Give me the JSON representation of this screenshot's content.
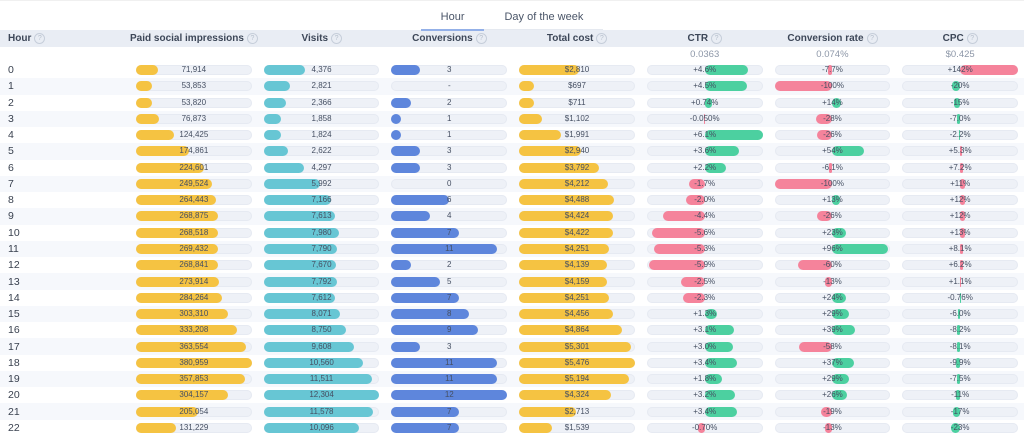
{
  "tabs": [
    {
      "label": "Hour",
      "active": true
    },
    {
      "label": "Day of the week",
      "active": false
    }
  ],
  "colors": {
    "impressions_bar": "#F5C342",
    "visits_bar": "#67C6D4",
    "conversions_bar": "#5E86DC",
    "cost_bar": "#F5C342",
    "positive_green": "#4CD0A0",
    "negative_pink": "#F5839B",
    "tab_underline": "#93B0E8"
  },
  "columns": [
    {
      "key": "hour",
      "label": "Hour",
      "type": "label",
      "benchmark": ""
    },
    {
      "key": "impressions",
      "label": "Paid social impressions",
      "type": "bar",
      "color": "impressions_bar",
      "benchmark": ""
    },
    {
      "key": "visits",
      "label": "Visits",
      "type": "bar",
      "color": "visits_bar",
      "benchmark": ""
    },
    {
      "key": "conversions",
      "label": "Conversions",
      "type": "bar",
      "color": "conversions_bar",
      "benchmark": ""
    },
    {
      "key": "cost",
      "label": "Total cost",
      "type": "bar",
      "color": "cost_bar",
      "benchmark": ""
    },
    {
      "key": "ctr",
      "label": "CTR",
      "type": "diverging",
      "invert": false,
      "benchmark": "0.0363"
    },
    {
      "key": "cvr",
      "label": "Conversion rate",
      "type": "diverging",
      "invert": false,
      "benchmark": "0.074%"
    },
    {
      "key": "cpc",
      "label": "CPC",
      "type": "diverging",
      "invert": true,
      "benchmark": "$0.425"
    }
  ],
  "rows": [
    {
      "hour": "0",
      "impressions": {
        "d": "71,914",
        "v": 71914
      },
      "visits": {
        "d": "4,376",
        "v": 4376
      },
      "conversions": {
        "d": "3",
        "v": 3
      },
      "cost": {
        "d": "$2,810",
        "v": 2810
      },
      "ctr": {
        "d": "+4.6%",
        "v": 4.6
      },
      "cvr": {
        "d": "-7.7%",
        "v": -7.7
      },
      "cpc": {
        "d": "+142%",
        "v": 142
      }
    },
    {
      "hour": "1",
      "impressions": {
        "d": "53,853",
        "v": 53853
      },
      "visits": {
        "d": "2,821",
        "v": 2821
      },
      "conversions": {
        "d": "-",
        "v": null
      },
      "cost": {
        "d": "$697",
        "v": 697
      },
      "ctr": {
        "d": "+4.5%",
        "v": 4.5
      },
      "cvr": {
        "d": "-100%",
        "v": -100
      },
      "cpc": {
        "d": "-20%",
        "v": -20
      }
    },
    {
      "hour": "2",
      "impressions": {
        "d": "53,820",
        "v": 53820
      },
      "visits": {
        "d": "2,366",
        "v": 2366
      },
      "conversions": {
        "d": "2",
        "v": 2
      },
      "cost": {
        "d": "$711",
        "v": 711
      },
      "ctr": {
        "d": "+0.74%",
        "v": 0.74
      },
      "cvr": {
        "d": "+14%",
        "v": 14
      },
      "cpc": {
        "d": "-15%",
        "v": -15
      }
    },
    {
      "hour": "3",
      "impressions": {
        "d": "76,873",
        "v": 76873
      },
      "visits": {
        "d": "1,858",
        "v": 1858
      },
      "conversions": {
        "d": "1",
        "v": 1
      },
      "cost": {
        "d": "$1,102",
        "v": 1102
      },
      "ctr": {
        "d": "-0.050%",
        "v": -0.05
      },
      "cvr": {
        "d": "-28%",
        "v": -28
      },
      "cpc": {
        "d": "-7.0%",
        "v": -7.0
      }
    },
    {
      "hour": "4",
      "impressions": {
        "d": "124,425",
        "v": 124425
      },
      "visits": {
        "d": "1,824",
        "v": 1824
      },
      "conversions": {
        "d": "1",
        "v": 1
      },
      "cost": {
        "d": "$1,991",
        "v": 1991
      },
      "ctr": {
        "d": "+6.1%",
        "v": 6.1
      },
      "cvr": {
        "d": "-26%",
        "v": -26
      },
      "cpc": {
        "d": "-2.2%",
        "v": -2.2
      }
    },
    {
      "hour": "5",
      "impressions": {
        "d": "174,861",
        "v": 174861
      },
      "visits": {
        "d": "2,622",
        "v": 2622
      },
      "conversions": {
        "d": "3",
        "v": 3
      },
      "cost": {
        "d": "$2,940",
        "v": 2940
      },
      "ctr": {
        "d": "+3.6%",
        "v": 3.6
      },
      "cvr": {
        "d": "+54%",
        "v": 54
      },
      "cpc": {
        "d": "+5.3%",
        "v": 5.3
      }
    },
    {
      "hour": "6",
      "impressions": {
        "d": "224,601",
        "v": 224601
      },
      "visits": {
        "d": "4,297",
        "v": 4297
      },
      "conversions": {
        "d": "3",
        "v": 3
      },
      "cost": {
        "d": "$3,792",
        "v": 3792
      },
      "ctr": {
        "d": "+2.2%",
        "v": 2.2
      },
      "cvr": {
        "d": "-6.1%",
        "v": -6.1
      },
      "cpc": {
        "d": "+7.2%",
        "v": 7.2
      }
    },
    {
      "hour": "7",
      "impressions": {
        "d": "249,524",
        "v": 249524
      },
      "visits": {
        "d": "5,992",
        "v": 5992
      },
      "conversions": {
        "d": "0",
        "v": 0
      },
      "cost": {
        "d": "$4,212",
        "v": 4212
      },
      "ctr": {
        "d": "-1.7%",
        "v": -1.7
      },
      "cvr": {
        "d": "-100%",
        "v": -100
      },
      "cpc": {
        "d": "+11%",
        "v": 11
      }
    },
    {
      "hour": "8",
      "impressions": {
        "d": "264,443",
        "v": 264443
      },
      "visits": {
        "d": "7,166",
        "v": 7166
      },
      "conversions": {
        "d": "6",
        "v": 6
      },
      "cost": {
        "d": "$4,488",
        "v": 4488
      },
      "ctr": {
        "d": "-2.0%",
        "v": -2.0
      },
      "cvr": {
        "d": "+13%",
        "v": 13
      },
      "cpc": {
        "d": "+12%",
        "v": 12
      }
    },
    {
      "hour": "9",
      "impressions": {
        "d": "268,875",
        "v": 268875
      },
      "visits": {
        "d": "7,613",
        "v": 7613
      },
      "conversions": {
        "d": "4",
        "v": 4
      },
      "cost": {
        "d": "$4,424",
        "v": 4424
      },
      "ctr": {
        "d": "-4.4%",
        "v": -4.4
      },
      "cvr": {
        "d": "-26%",
        "v": -26
      },
      "cpc": {
        "d": "+12%",
        "v": 12
      }
    },
    {
      "hour": "10",
      "impressions": {
        "d": "268,518",
        "v": 268518
      },
      "visits": {
        "d": "7,980",
        "v": 7980
      },
      "conversions": {
        "d": "7",
        "v": 7
      },
      "cost": {
        "d": "$4,422",
        "v": 4422
      },
      "ctr": {
        "d": "-5.6%",
        "v": -5.6
      },
      "cvr": {
        "d": "+23%",
        "v": 23
      },
      "cpc": {
        "d": "+13%",
        "v": 13
      }
    },
    {
      "hour": "11",
      "impressions": {
        "d": "269,432",
        "v": 269432
      },
      "visits": {
        "d": "7,790",
        "v": 7790
      },
      "conversions": {
        "d": "11",
        "v": 11
      },
      "cost": {
        "d": "$4,251",
        "v": 4251
      },
      "ctr": {
        "d": "-5.3%",
        "v": -5.3
      },
      "cvr": {
        "d": "+96%",
        "v": 96
      },
      "cpc": {
        "d": "+8.1%",
        "v": 8.1
      }
    },
    {
      "hour": "12",
      "impressions": {
        "d": "268,841",
        "v": 268841
      },
      "visits": {
        "d": "7,670",
        "v": 7670
      },
      "conversions": {
        "d": "2",
        "v": 2
      },
      "cost": {
        "d": "$4,139",
        "v": 4139
      },
      "ctr": {
        "d": "-5.9%",
        "v": -5.9
      },
      "cvr": {
        "d": "-60%",
        "v": -60
      },
      "cpc": {
        "d": "+6.2%",
        "v": 6.2
      }
    },
    {
      "hour": "13",
      "impressions": {
        "d": "273,914",
        "v": 273914
      },
      "visits": {
        "d": "7,792",
        "v": 7792
      },
      "conversions": {
        "d": "5",
        "v": 5
      },
      "cost": {
        "d": "$4,159",
        "v": 4159
      },
      "ctr": {
        "d": "-2.5%",
        "v": -2.5
      },
      "cvr": {
        "d": "-13%",
        "v": -13
      },
      "cpc": {
        "d": "+1.1%",
        "v": 1.1
      }
    },
    {
      "hour": "14",
      "impressions": {
        "d": "284,264",
        "v": 284264
      },
      "visits": {
        "d": "7,612",
        "v": 7612
      },
      "conversions": {
        "d": "7",
        "v": 7
      },
      "cost": {
        "d": "$4,251",
        "v": 4251
      },
      "ctr": {
        "d": "-2.3%",
        "v": -2.3
      },
      "cvr": {
        "d": "+24%",
        "v": 24
      },
      "cpc": {
        "d": "-0.76%",
        "v": -0.76
      }
    },
    {
      "hour": "15",
      "impressions": {
        "d": "303,310",
        "v": 303310
      },
      "visits": {
        "d": "8,071",
        "v": 8071
      },
      "conversions": {
        "d": "8",
        "v": 8
      },
      "cost": {
        "d": "$4,456",
        "v": 4456
      },
      "ctr": {
        "d": "+1.3%",
        "v": 1.3
      },
      "cvr": {
        "d": "+29%",
        "v": 29
      },
      "cpc": {
        "d": "-6.0%",
        "v": -6.0
      }
    },
    {
      "hour": "16",
      "impressions": {
        "d": "333,208",
        "v": 333208
      },
      "visits": {
        "d": "8,750",
        "v": 8750
      },
      "conversions": {
        "d": "9",
        "v": 9
      },
      "cost": {
        "d": "$4,864",
        "v": 4864
      },
      "ctr": {
        "d": "+3.1%",
        "v": 3.1
      },
      "cvr": {
        "d": "+39%",
        "v": 39
      },
      "cpc": {
        "d": "-8.2%",
        "v": -8.2
      }
    },
    {
      "hour": "17",
      "impressions": {
        "d": "363,554",
        "v": 363554
      },
      "visits": {
        "d": "9,608",
        "v": 9608
      },
      "conversions": {
        "d": "3",
        "v": 3
      },
      "cost": {
        "d": "$5,301",
        "v": 5301
      },
      "ctr": {
        "d": "+3.0%",
        "v": 3.0
      },
      "cvr": {
        "d": "-58%",
        "v": -58
      },
      "cpc": {
        "d": "-8.1%",
        "v": -8.1
      }
    },
    {
      "hour": "18",
      "impressions": {
        "d": "380,959",
        "v": 380959
      },
      "visits": {
        "d": "10,560",
        "v": 10560
      },
      "conversions": {
        "d": "11",
        "v": 11
      },
      "cost": {
        "d": "$5,476",
        "v": 5476
      },
      "ctr": {
        "d": "+3.4%",
        "v": 3.4
      },
      "cvr": {
        "d": "+37%",
        "v": 37
      },
      "cpc": {
        "d": "-9.9%",
        "v": -9.9
      }
    },
    {
      "hour": "19",
      "impressions": {
        "d": "357,853",
        "v": 357853
      },
      "visits": {
        "d": "11,511",
        "v": 11511
      },
      "conversions": {
        "d": "11",
        "v": 11
      },
      "cost": {
        "d": "$5,194",
        "v": 5194
      },
      "ctr": {
        "d": "+1.8%",
        "v": 1.8
      },
      "cvr": {
        "d": "+29%",
        "v": 29
      },
      "cpc": {
        "d": "-7.5%",
        "v": -7.5
      }
    },
    {
      "hour": "20",
      "impressions": {
        "d": "304,157",
        "v": 304157
      },
      "visits": {
        "d": "12,304",
        "v": 12304
      },
      "conversions": {
        "d": "12",
        "v": 12
      },
      "cost": {
        "d": "$4,324",
        "v": 4324
      },
      "ctr": {
        "d": "+3.2%",
        "v": 3.2
      },
      "cvr": {
        "d": "+26%",
        "v": 26
      },
      "cpc": {
        "d": "-11%",
        "v": -11
      }
    },
    {
      "hour": "21",
      "impressions": {
        "d": "205,054",
        "v": 205054
      },
      "visits": {
        "d": "11,578",
        "v": 11578
      },
      "conversions": {
        "d": "7",
        "v": 7
      },
      "cost": {
        "d": "$2,713",
        "v": 2713
      },
      "ctr": {
        "d": "+3.4%",
        "v": 3.4
      },
      "cvr": {
        "d": "-19%",
        "v": -19
      },
      "cpc": {
        "d": "-17%",
        "v": -17
      }
    },
    {
      "hour": "22",
      "impressions": {
        "d": "131,229",
        "v": 131229
      },
      "visits": {
        "d": "10,096",
        "v": 10096
      },
      "conversions": {
        "d": "7",
        "v": 7
      },
      "cost": {
        "d": "$1,539",
        "v": 1539
      },
      "ctr": {
        "d": "-0.70%",
        "v": -0.7
      },
      "cvr": {
        "d": "-13%",
        "v": -13
      },
      "cpc": {
        "d": "-23%",
        "v": -23
      }
    }
  ]
}
